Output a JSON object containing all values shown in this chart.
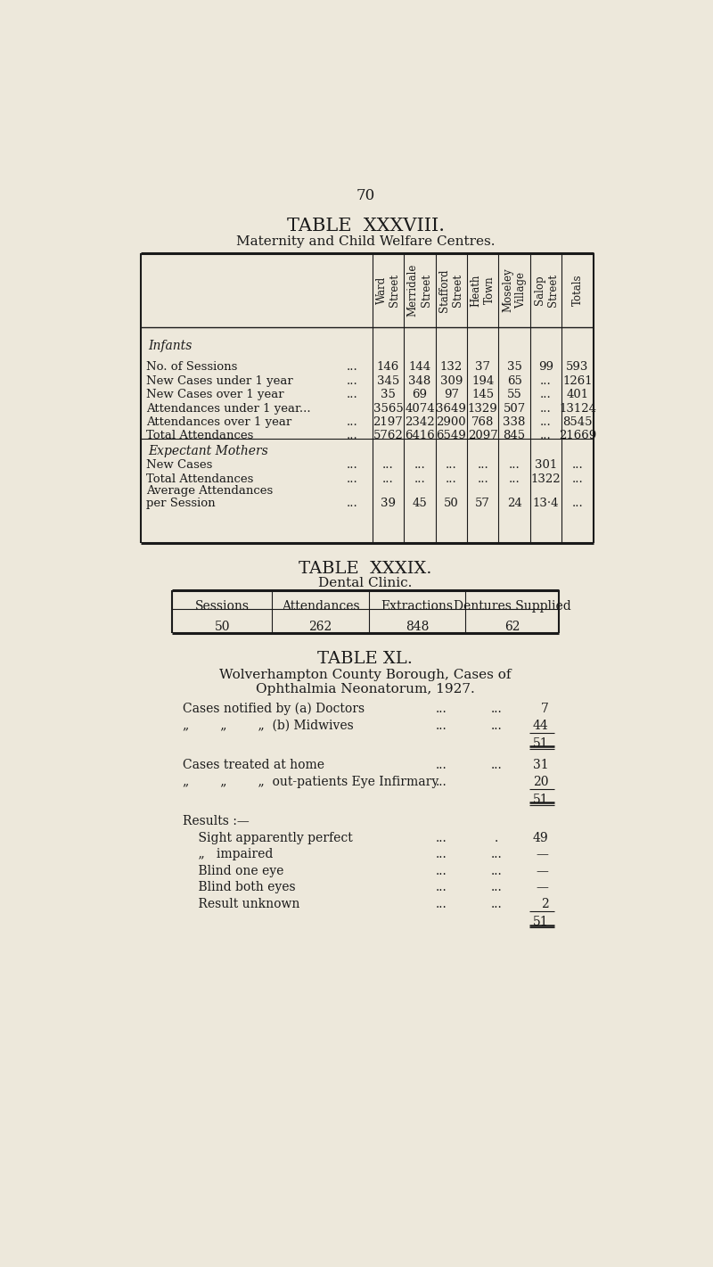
{
  "bg_color": "#ede8db",
  "text_color": "#1a1a1a",
  "page_number": "70",
  "t38_title": "TABLE  XXXVIII.",
  "t38_subtitle": "Maternity and Child Welfare Centres.",
  "t38_col_headers": [
    "Ward\nStreet",
    "Merridale\nStreet",
    "Stafford\nStreet",
    "Heath\nTown",
    "Moseley\nVillage",
    "Salop\nStreet",
    "Totals"
  ],
  "t38_infants_label": "Infants",
  "t38_infant_labels": [
    "No. of Sessions",
    "New Cases under 1 year",
    "New Cases over 1 year",
    "Attendances under 1 year...",
    "Attendances over 1 year",
    "Total Attendances"
  ],
  "t38_infant_dots": [
    "...",
    "...",
    "...",
    "",
    "...",
    "..."
  ],
  "t38_infant_data": [
    [
      "146",
      "144",
      "132",
      "37",
      "35",
      "99",
      "593"
    ],
    [
      "345",
      "348",
      "309",
      "194",
      "65",
      "...",
      "1261"
    ],
    [
      "35",
      "69",
      "97",
      "145",
      "55",
      "...",
      "401"
    ],
    [
      "3565",
      "4074",
      "3649",
      "1329",
      "507",
      "...",
      "13124"
    ],
    [
      "2197",
      "2342",
      "2900",
      "768",
      "338",
      "...",
      "8545"
    ],
    [
      "5762",
      "6416",
      "6549",
      "2097",
      "845",
      "...",
      "21669"
    ]
  ],
  "t38_em_label": "Expectant Mothers",
  "t38_em_labels": [
    "New Cases",
    "Total Attendances",
    "Average Attendances",
    "per Session"
  ],
  "t38_em_dots": [
    "...",
    "...",
    "",
    "..."
  ],
  "t38_em_dots2": [
    "...",
    "...",
    "",
    "..."
  ],
  "t38_em_data": [
    [
      "...",
      "...",
      "...",
      "...",
      "...",
      "301",
      "..."
    ],
    [
      "...",
      "...",
      "...",
      "...",
      "...",
      "1322",
      "..."
    ],
    [
      "",
      "",
      "",
      "",
      "",
      "",
      ""
    ],
    [
      "39",
      "45",
      "50",
      "57",
      "24",
      "13·4",
      "..."
    ]
  ],
  "t39_title": "TABLE  XXXIX.",
  "t39_subtitle": "Dental Clinic.",
  "t39_headers": [
    "Sessions",
    "Attendances",
    "Extractions",
    "Dentures Supplied"
  ],
  "t39_data": [
    "50",
    "262",
    "848",
    "62"
  ],
  "t40_title": "TABLE XL.",
  "t40_sub1": "Wolverhampton County Borough, Cases of",
  "t40_sub2": "Ophthalmia Neonatorum, 1927.",
  "t40_lines": [
    {
      "label": "Cases notified by (a) Doctors",
      "d1": "...",
      "d2": "...",
      "val": "7",
      "type": "normal"
    },
    {
      "label": "„        „        „  (b) Midwives",
      "d1": "...",
      "d2": "...",
      "val": "44",
      "type": "normal"
    },
    {
      "label": "",
      "d1": "",
      "d2": "",
      "val": "51",
      "type": "subtotal"
    },
    {
      "label": "Cases treated at home",
      "d1": "...",
      "d2": "...",
      "val": "31",
      "type": "normal"
    },
    {
      "label": "„        „        „  out-patients Eye Infirmary",
      "d1": "...",
      "d2": "",
      "val": "20",
      "type": "normal"
    },
    {
      "label": "",
      "d1": "",
      "d2": "",
      "val": "51",
      "type": "subtotal"
    },
    {
      "label": "Results :—",
      "d1": "",
      "d2": "",
      "val": "",
      "type": "header"
    },
    {
      "label": "    Sight apparently perfect",
      "d1": "...",
      "d2": ".",
      "val": "49",
      "type": "normal"
    },
    {
      "label": "    „   impaired",
      "d1": "...",
      "d2": "...",
      "val": "—",
      "type": "normal"
    },
    {
      "label": "    Blind one eye",
      "d1": "...",
      "d2": "...",
      "val": "—",
      "type": "normal"
    },
    {
      "label": "    Blind both eyes",
      "d1": "...",
      "d2": "...",
      "val": "—",
      "type": "normal"
    },
    {
      "label": "    Result unknown",
      "d1": "...",
      "d2": "...",
      "val": "2",
      "type": "normal"
    },
    {
      "label": "",
      "d1": "",
      "d2": "",
      "val": "51",
      "type": "subtotal"
    }
  ]
}
